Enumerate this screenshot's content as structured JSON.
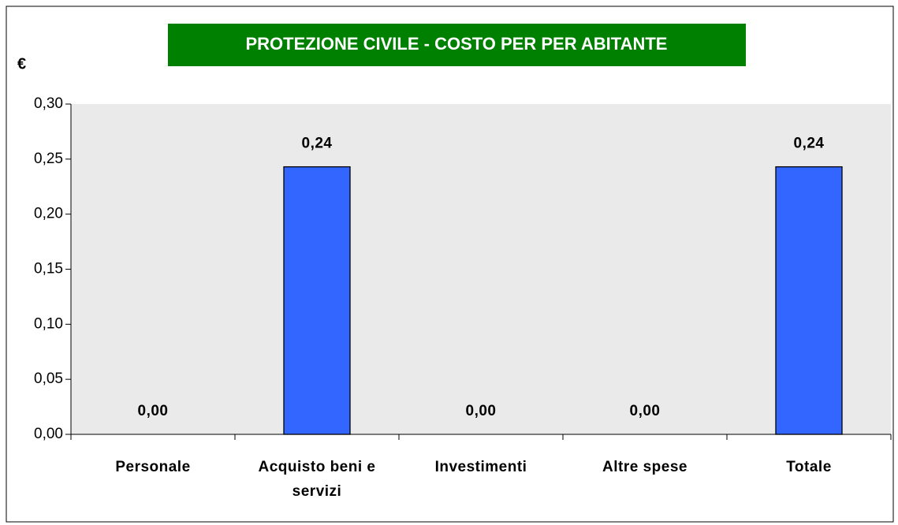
{
  "chart_data": {
    "type": "bar",
    "title": "PROTEZIONE CIVILE - COSTO PER PER ABITANTE",
    "y_label": "€",
    "categories": [
      "Personale",
      "Acquisto beni e servizi",
      "Investimenti",
      "Altre spese",
      "Totale"
    ],
    "values": [
      0,
      0.243,
      0,
      0,
      0.243
    ],
    "value_labels": [
      "0,00",
      "0,24",
      "0,00",
      "0,00",
      "0,24"
    ],
    "color": "#3366ff",
    "title_background": "#008000",
    "ylim": [
      0,
      0.3
    ],
    "yticks": [
      {
        "value": 0,
        "label": "0,00"
      },
      {
        "value": 0.05,
        "label": "0,05"
      },
      {
        "value": 0.1,
        "label": "0,10"
      },
      {
        "value": 0.15,
        "label": "0,15"
      },
      {
        "value": 0.2,
        "label": "0,20"
      },
      {
        "value": 0.25,
        "label": "0,25"
      },
      {
        "value": 0.3,
        "label": "0,30"
      }
    ],
    "grid": false
  }
}
